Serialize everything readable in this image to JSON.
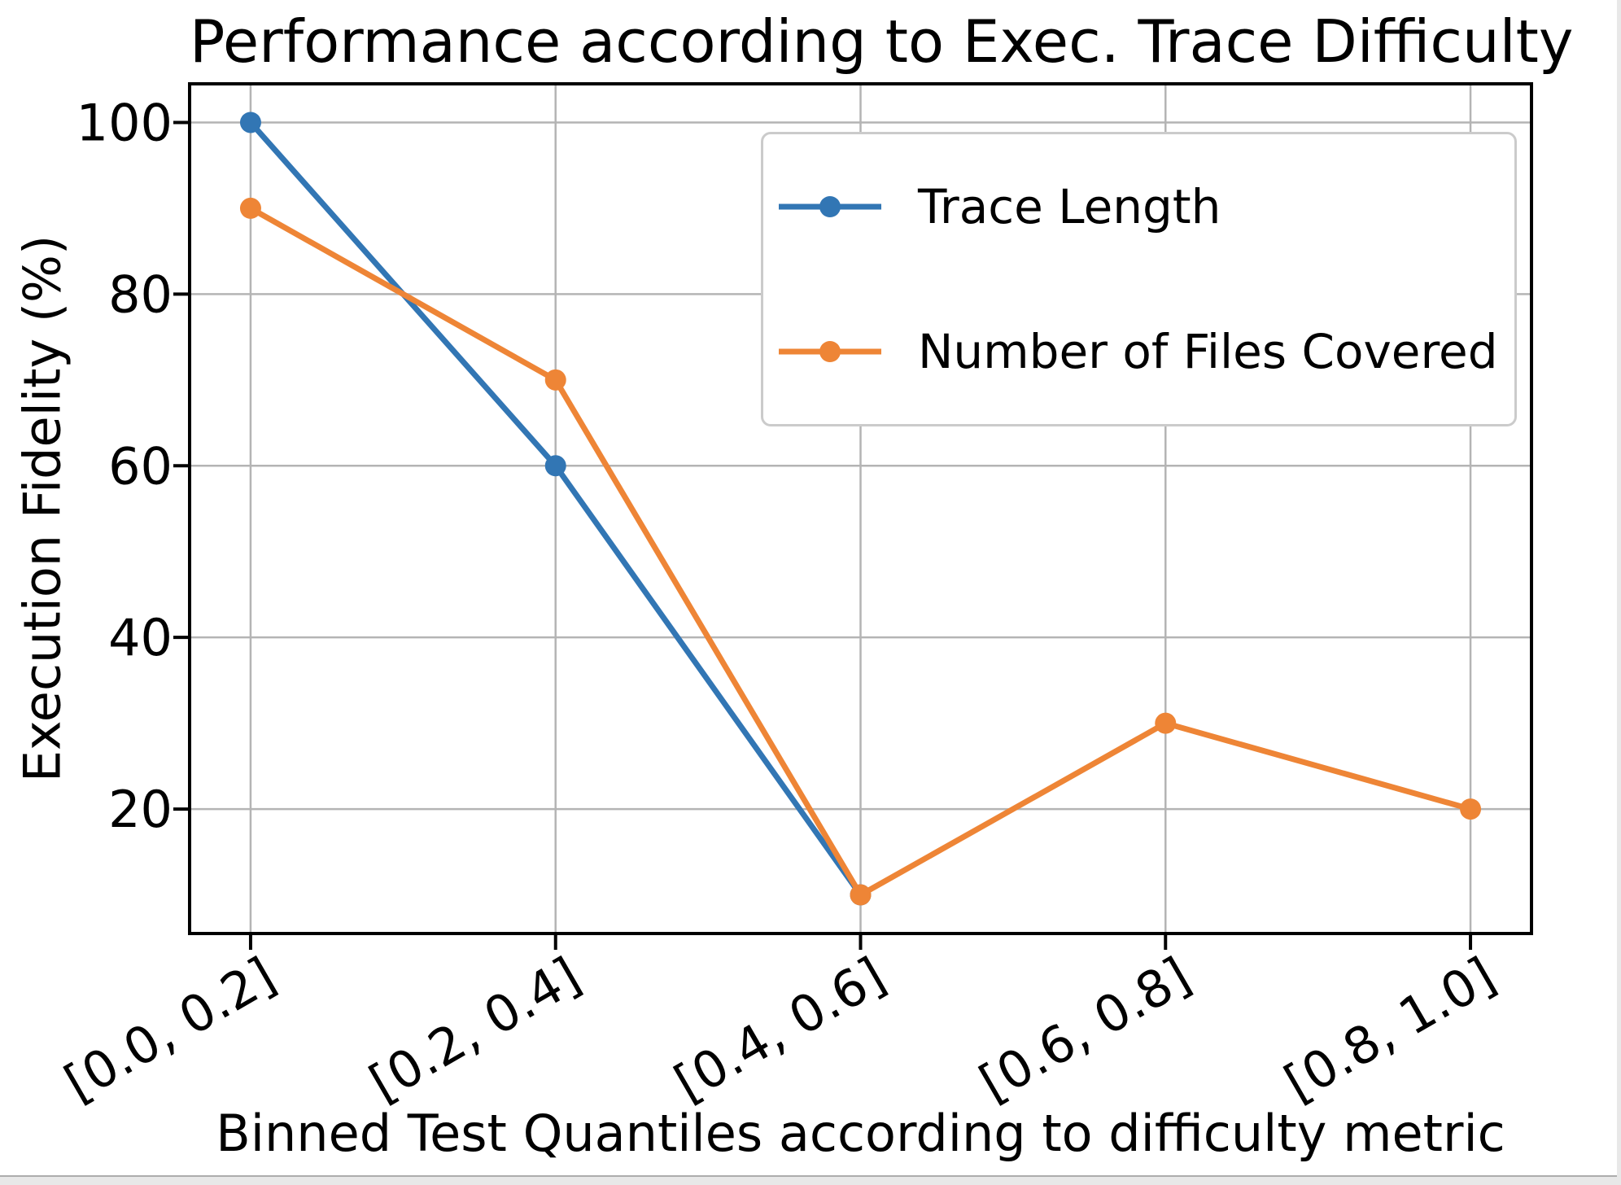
{
  "window": {
    "background": "#ffffff"
  },
  "chart_data": {
    "type": "line",
    "title": "Performance according to Exec. Trace Difficulty",
    "xlabel": "Binned Test Quantiles according to difficulty metric",
    "ylabel": "Execution Fidelity (%)",
    "categories": [
      "[0.0, 0.2]",
      "[0.2, 0.4]",
      "[0.4, 0.6]",
      "[0.6, 0.8]",
      "[0.8, 1.0]"
    ],
    "series": [
      {
        "name": "Trace Length",
        "color": "#3276b4",
        "values": [
          100,
          60,
          10,
          null,
          null
        ]
      },
      {
        "name": "Number of Files Covered",
        "color": "#ee8536",
        "values": [
          90,
          70,
          10,
          30,
          20
        ]
      }
    ],
    "yticks": [
      20,
      40,
      60,
      80,
      100
    ],
    "ylim": [
      5.5,
      104.5
    ],
    "grid": true,
    "grid_color": "#b4b4b4",
    "axis_color": "#000000",
    "tick_rotation_deg": 30,
    "legend": {
      "position": "upper right",
      "entries": [
        "Trace Length",
        "Number of Files Covered"
      ]
    }
  }
}
